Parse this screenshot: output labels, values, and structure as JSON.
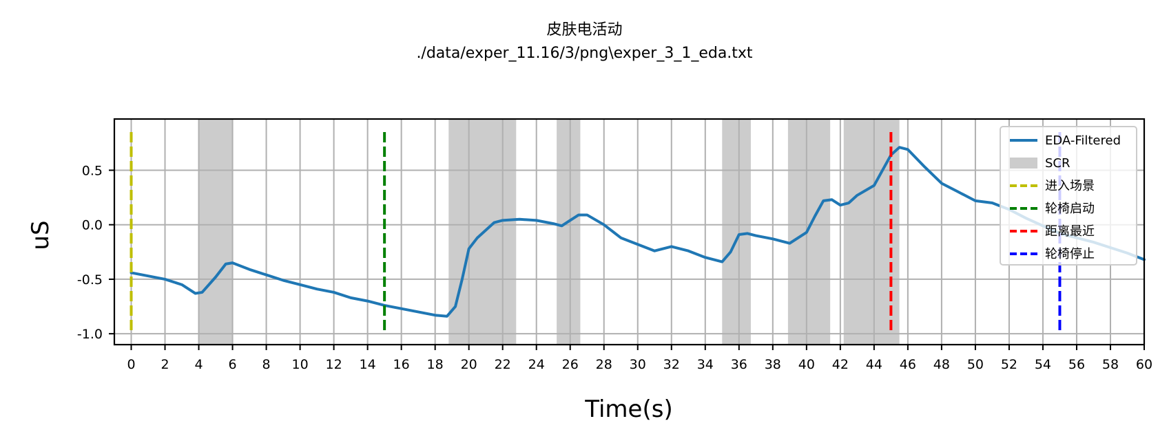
{
  "chart_data": {
    "type": "line",
    "title": "皮肤电活动",
    "subtitle": "./data/exper_11.16/3/png\\exper_3_1_eda.txt",
    "xlabel": "Time(s)",
    "ylabel": "uS",
    "xlim": [
      -1,
      60
    ],
    "ylim": [
      -1.1,
      0.97
    ],
    "grid": true,
    "legend_position": "top-right",
    "x_ticks": [
      0,
      2,
      4,
      6,
      8,
      10,
      12,
      14,
      16,
      18,
      20,
      22,
      24,
      26,
      28,
      30,
      32,
      34,
      36,
      38,
      40,
      42,
      44,
      46,
      48,
      50,
      52,
      54,
      56,
      58,
      60
    ],
    "y_ticks": [
      {
        "value": 0.5,
        "label": "0.5"
      },
      {
        "value": 0.0,
        "label": "0.0"
      },
      {
        "value": -0.5,
        "label": "-0.5"
      },
      {
        "value": -1.0,
        "label": "-1.0"
      }
    ],
    "series": [
      {
        "name": "EDA-Filtered",
        "color": "#1f77b4",
        "points": [
          [
            0,
            -0.44
          ],
          [
            1,
            -0.47
          ],
          [
            2,
            -0.5
          ],
          [
            3,
            -0.55
          ],
          [
            3.8,
            -0.63
          ],
          [
            4.2,
            -0.62
          ],
          [
            5,
            -0.48
          ],
          [
            5.6,
            -0.36
          ],
          [
            6,
            -0.35
          ],
          [
            7,
            -0.41
          ],
          [
            8,
            -0.46
          ],
          [
            9,
            -0.51
          ],
          [
            10,
            -0.55
          ],
          [
            11,
            -0.59
          ],
          [
            12,
            -0.62
          ],
          [
            13,
            -0.67
          ],
          [
            14,
            -0.7
          ],
          [
            15,
            -0.74
          ],
          [
            16,
            -0.77
          ],
          [
            17,
            -0.8
          ],
          [
            18,
            -0.83
          ],
          [
            18.7,
            -0.84
          ],
          [
            19.2,
            -0.75
          ],
          [
            19.6,
            -0.5
          ],
          [
            20,
            -0.22
          ],
          [
            20.5,
            -0.12
          ],
          [
            21,
            -0.05
          ],
          [
            21.5,
            0.02
          ],
          [
            22,
            0.04
          ],
          [
            23,
            0.05
          ],
          [
            24,
            0.04
          ],
          [
            25,
            0.01
          ],
          [
            25.5,
            -0.01
          ],
          [
            26,
            0.04
          ],
          [
            26.5,
            0.09
          ],
          [
            27,
            0.09
          ],
          [
            28,
            0.0
          ],
          [
            29,
            -0.12
          ],
          [
            30,
            -0.18
          ],
          [
            31,
            -0.24
          ],
          [
            32,
            -0.2
          ],
          [
            33,
            -0.24
          ],
          [
            34,
            -0.3
          ],
          [
            35,
            -0.34
          ],
          [
            35.5,
            -0.25
          ],
          [
            36,
            -0.09
          ],
          [
            36.5,
            -0.08
          ],
          [
            37,
            -0.1
          ],
          [
            38,
            -0.13
          ],
          [
            39,
            -0.17
          ],
          [
            40,
            -0.07
          ],
          [
            40.5,
            0.08
          ],
          [
            41,
            0.22
          ],
          [
            41.5,
            0.23
          ],
          [
            42,
            0.18
          ],
          [
            42.5,
            0.2
          ],
          [
            43,
            0.27
          ],
          [
            44,
            0.36
          ],
          [
            44.5,
            0.5
          ],
          [
            45,
            0.64
          ],
          [
            45.5,
            0.71
          ],
          [
            46,
            0.69
          ],
          [
            47,
            0.53
          ],
          [
            48,
            0.38
          ],
          [
            49,
            0.3
          ],
          [
            50,
            0.22
          ],
          [
            51,
            0.2
          ],
          [
            52,
            0.14
          ],
          [
            53,
            0.06
          ],
          [
            54,
            -0.01
          ],
          [
            55,
            -0.08
          ],
          [
            56,
            -0.12
          ],
          [
            57,
            -0.16
          ],
          [
            58,
            -0.21
          ],
          [
            59,
            -0.26
          ],
          [
            60,
            -0.32
          ]
        ]
      }
    ],
    "scr_regions": [
      {
        "start": 4.0,
        "end": 6.0
      },
      {
        "start": 18.8,
        "end": 22.8
      },
      {
        "start": 25.2,
        "end": 26.6
      },
      {
        "start": 35.0,
        "end": 36.7
      },
      {
        "start": 38.9,
        "end": 41.4
      },
      {
        "start": 42.2,
        "end": 45.5
      }
    ],
    "events": [
      {
        "label": "进入场景",
        "x": 0,
        "color": "#bfbf00",
        "top": 0.85,
        "bottom": -1.0
      },
      {
        "label": "轮椅启动",
        "x": 15,
        "color": "#008000",
        "top": 0.85,
        "bottom": -1.0
      },
      {
        "label": "距离最近",
        "x": 45,
        "color": "#ff0000",
        "top": 0.85,
        "bottom": -1.0
      },
      {
        "label": "轮椅停止",
        "x": 55,
        "color": "#0000ff",
        "top": 0.85,
        "bottom": -1.0
      }
    ],
    "legend": [
      {
        "label": "EDA-Filtered",
        "kind": "line",
        "color": "#1f77b4"
      },
      {
        "label": "SCR",
        "kind": "patch",
        "color": "#cccccc"
      },
      {
        "label": "进入场景",
        "kind": "dash",
        "color": "#bfbf00"
      },
      {
        "label": "轮椅启动",
        "kind": "dash",
        "color": "#008000"
      },
      {
        "label": "距离最近",
        "kind": "dash",
        "color": "#ff0000"
      },
      {
        "label": "轮椅停止",
        "kind": "dash",
        "color": "#0000ff"
      }
    ]
  }
}
